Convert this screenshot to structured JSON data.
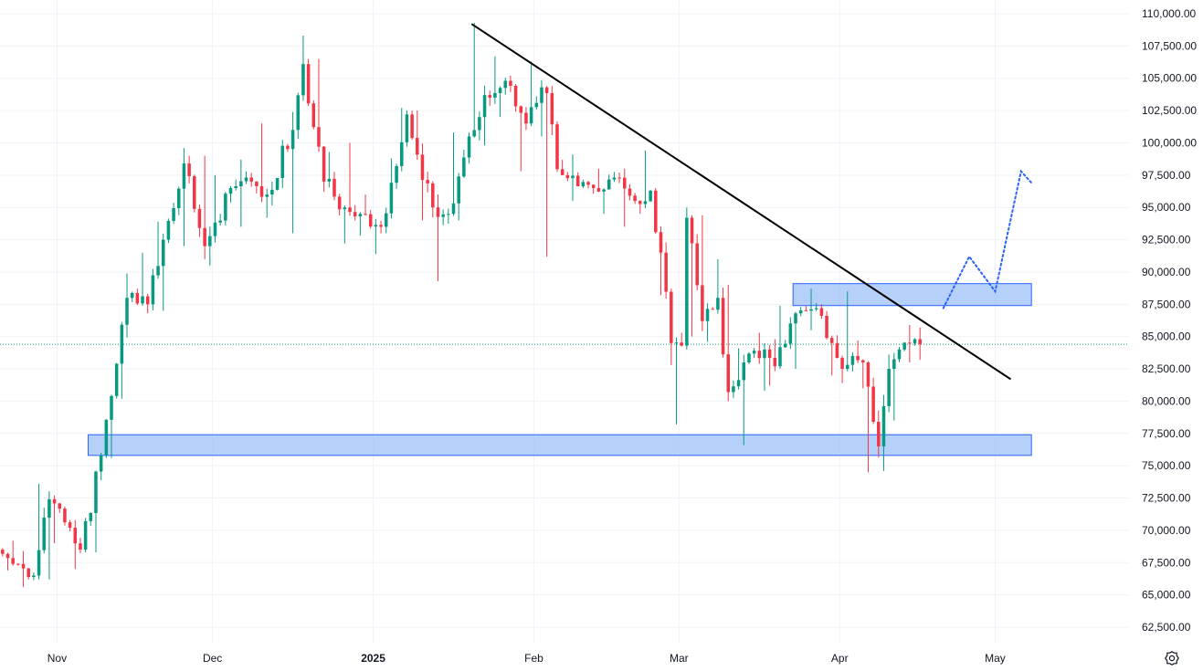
{
  "chart_data": {
    "type": "candlestick",
    "title": "",
    "xlabel": "",
    "ylabel": "",
    "ylim": [
      61500,
      110500
    ],
    "y_ticks": [
      "110,000.00",
      "107,500.00",
      "105,000.00",
      "102,500.00",
      "100,000.00",
      "97,500.00",
      "95,000.00",
      "92,500.00",
      "90,000.00",
      "87,500.00",
      "85,000.00",
      "82,500.00",
      "80,000.00",
      "77,500.00",
      "75,000.00",
      "72,500.00",
      "70,000.00",
      "67,500.00",
      "65,000.00",
      "62,500.00"
    ],
    "x_ticks": [
      {
        "label": "Nov",
        "date": "2024-11-01",
        "bold": false
      },
      {
        "label": "Dec",
        "date": "2024-12-01",
        "bold": false
      },
      {
        "label": "2025",
        "date": "2025-01-01",
        "bold": true
      },
      {
        "label": "Feb",
        "date": "2025-02-01",
        "bold": false
      },
      {
        "label": "Mar",
        "date": "2025-03-01",
        "bold": false
      },
      {
        "label": "Apr",
        "date": "2025-04-01",
        "bold": false
      },
      {
        "label": "May",
        "date": "2025-05-01",
        "bold": false
      }
    ],
    "x_start": "2024-10-21",
    "x_end": "2025-05-27",
    "current_price": 84400,
    "colors": {
      "up": "#089981",
      "down": "#f23645",
      "zone_fill": "#9ec1f7",
      "zone_border": "#2962ff",
      "trendline": "#000000",
      "projection": "#2962ff",
      "price_line": "#089981"
    },
    "ohlc_anchors": [
      [
        "2024-10-21",
        68500,
        69200,
        66900,
        67400
      ],
      [
        "2024-10-24",
        67400,
        68400,
        65600,
        66500
      ],
      [
        "2024-10-28",
        66500,
        73600,
        66200,
        72400
      ],
      [
        "2024-10-31",
        72400,
        72700,
        69000,
        70200
      ],
      [
        "2024-11-04",
        70200,
        70800,
        67000,
        68500
      ],
      [
        "2024-11-06",
        68500,
        76000,
        68300,
        75800
      ],
      [
        "2024-11-10",
        75800,
        80500,
        75600,
        80400
      ],
      [
        "2024-11-12",
        80400,
        89900,
        80200,
        88000
      ],
      [
        "2024-11-15",
        88000,
        91500,
        86800,
        87500
      ],
      [
        "2024-11-19",
        87500,
        93900,
        87000,
        92500
      ],
      [
        "2024-11-22",
        92500,
        99600,
        92000,
        98400
      ],
      [
        "2024-11-26",
        98400,
        99000,
        91000,
        92000
      ],
      [
        "2024-11-30",
        92000,
        97500,
        90500,
        96500
      ],
      [
        "2024-12-05",
        96500,
        98700,
        93500,
        97000
      ],
      [
        "2024-12-09",
        97000,
        101500,
        94200,
        96000
      ],
      [
        "2024-12-12",
        96000,
        102400,
        93000,
        101000
      ],
      [
        "2024-12-17",
        101000,
        108300,
        100300,
        106100
      ],
      [
        "2024-12-19",
        106100,
        106500,
        96200,
        97000
      ],
      [
        "2024-12-23",
        97000,
        99300,
        92200,
        95000
      ],
      [
        "2024-12-27",
        95000,
        100000,
        92800,
        94500
      ],
      [
        "2024-12-30",
        94500,
        96000,
        91400,
        93500
      ],
      [
        "2025-01-03",
        93500,
        98800,
        93000,
        98200
      ],
      [
        "2025-01-06",
        98200,
        102700,
        97800,
        102200
      ],
      [
        "2025-01-08",
        102200,
        102500,
        94000,
        95000
      ],
      [
        "2025-01-13",
        95000,
        96000,
        89300,
        94500
      ],
      [
        "2025-01-16",
        94500,
        100800,
        94000,
        100500
      ],
      [
        "2025-01-20",
        100500,
        109300,
        99800,
        103500
      ],
      [
        "2025-01-24",
        103500,
        106700,
        102000,
        104800
      ],
      [
        "2025-01-27",
        104800,
        105200,
        97800,
        101500
      ],
      [
        "2025-01-31",
        101500,
        106300,
        100500,
        104300
      ],
      [
        "2025-02-03",
        104300,
        104400,
        91200,
        97500
      ],
      [
        "2025-02-07",
        97500,
        99100,
        95500,
        96500
      ],
      [
        "2025-02-13",
        96500,
        98000,
        94500,
        97300
      ],
      [
        "2025-02-18",
        97300,
        98000,
        93500,
        95500
      ],
      [
        "2025-02-21",
        95500,
        99400,
        94500,
        96300
      ],
      [
        "2025-02-24",
        96300,
        96500,
        88200,
        91500
      ],
      [
        "2025-02-26",
        91500,
        92300,
        82800,
        84500
      ],
      [
        "2025-02-28",
        84500,
        85300,
        78200,
        84300
      ],
      [
        "2025-03-02",
        84300,
        95000,
        84000,
        94200
      ],
      [
        "2025-03-03",
        94200,
        94400,
        85000,
        86200
      ],
      [
        "2025-03-06",
        86200,
        91000,
        84600,
        88000
      ],
      [
        "2025-03-09",
        88000,
        89000,
        80000,
        80700
      ],
      [
        "2025-03-11",
        80700,
        84100,
        76600,
        83000
      ],
      [
        "2025-03-14",
        83000,
        85300,
        80800,
        84000
      ],
      [
        "2025-03-18",
        84000,
        84800,
        81200,
        82700
      ],
      [
        "2025-03-20",
        82700,
        87400,
        82500,
        86800
      ],
      [
        "2025-03-24",
        86800,
        88700,
        85500,
        87200
      ],
      [
        "2025-03-28",
        87200,
        87500,
        82000,
        84500
      ],
      [
        "2025-03-31",
        84500,
        85100,
        81400,
        82500
      ],
      [
        "2025-04-02",
        82500,
        88500,
        82300,
        83500
      ],
      [
        "2025-04-04",
        83500,
        84700,
        81000,
        83000
      ],
      [
        "2025-04-06",
        83000,
        83100,
        74500,
        76500
      ],
      [
        "2025-04-09",
        76500,
        83600,
        74600,
        82500
      ],
      [
        "2025-04-11",
        82500,
        84200,
        78500,
        84000
      ],
      [
        "2025-04-13",
        84000,
        85900,
        83000,
        84800
      ],
      [
        "2025-04-16",
        84800,
        85700,
        83200,
        84400
      ]
    ],
    "zones": [
      {
        "from": "2024-11-07",
        "to": "2025-05-08",
        "low": 75800,
        "high": 77400
      },
      {
        "from": "2025-03-23",
        "to": "2025-05-08",
        "low": 87400,
        "high": 89100
      }
    ],
    "trendline": [
      {
        "date": "2025-01-20",
        "price": 109200
      },
      {
        "date": "2025-05-04",
        "price": 81700
      }
    ],
    "projection": [
      {
        "date": "2025-04-21",
        "price": 87200
      },
      {
        "date": "2025-04-26",
        "price": 91200
      },
      {
        "date": "2025-05-01",
        "price": 88500
      },
      {
        "date": "2025-05-06",
        "price": 97800
      },
      {
        "date": "2025-05-08",
        "price": 96900
      }
    ]
  },
  "icons": {
    "settings": "settings-icon"
  }
}
